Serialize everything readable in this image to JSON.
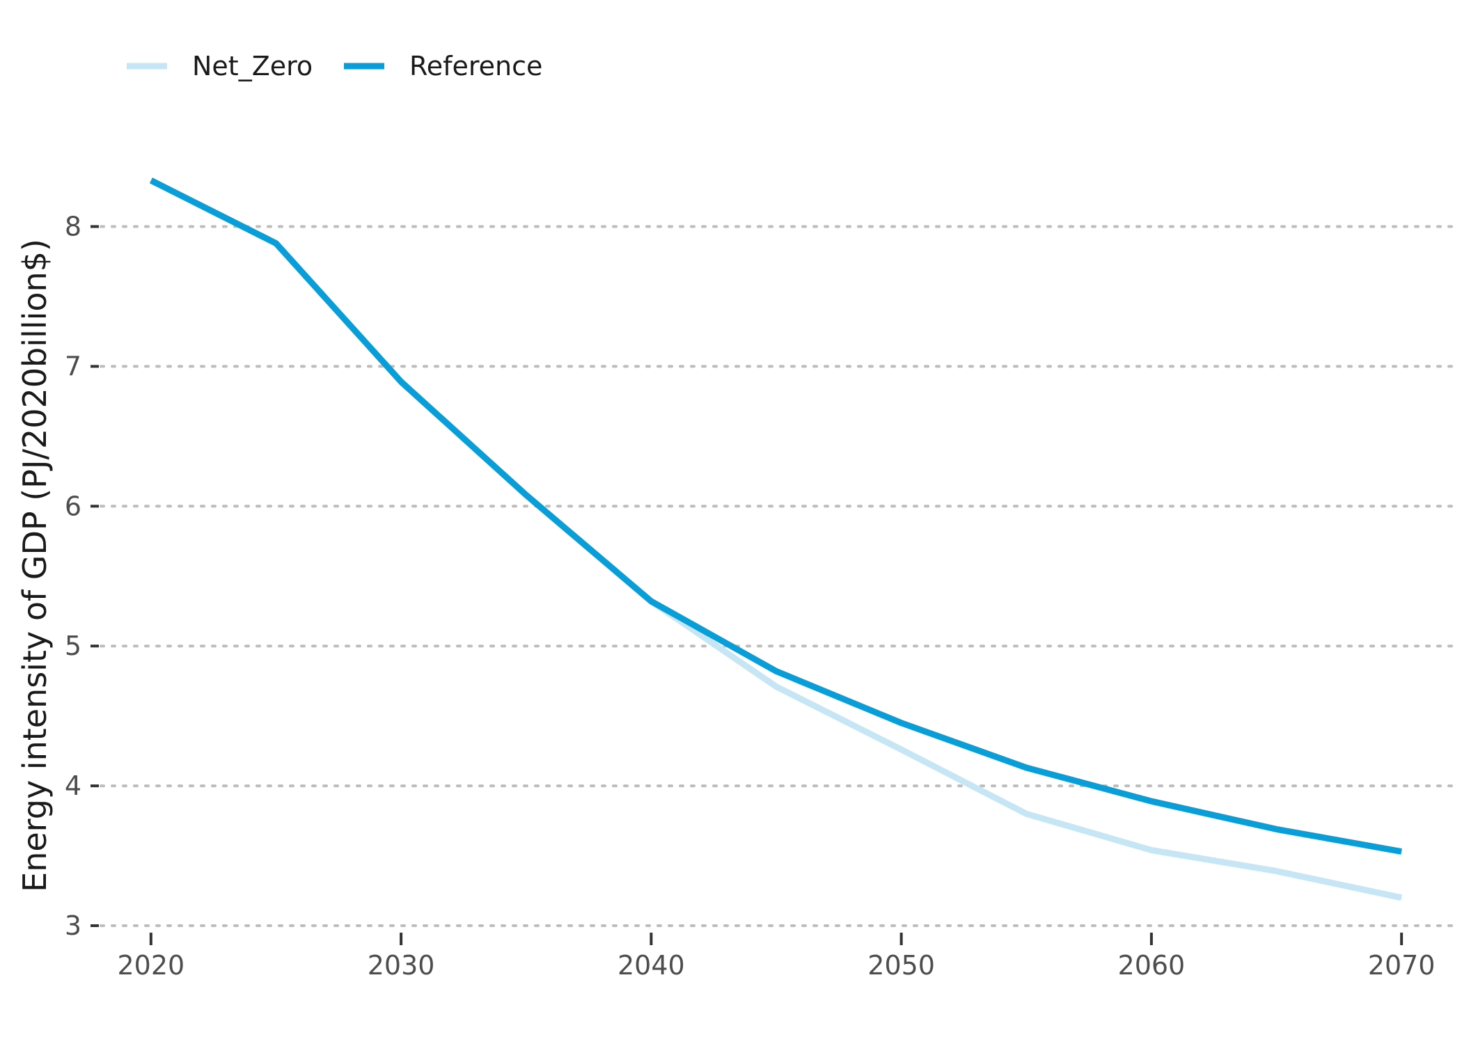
{
  "chart_data": {
    "type": "line",
    "title": "",
    "xlabel": "",
    "ylabel": "Energy intensity of GDP (PJ/2020billion$)",
    "xlim": [
      2018,
      2072
    ],
    "ylim": [
      3,
      8.55
    ],
    "x_ticks": [
      2020,
      2030,
      2040,
      2050,
      2060,
      2070
    ],
    "y_ticks": [
      3,
      4,
      5,
      6,
      7,
      8
    ],
    "grid": "horizontal-dotted",
    "legend": {
      "position": "top-left",
      "entries": [
        "Net_Zero",
        "Reference"
      ]
    },
    "x": [
      2020,
      2025,
      2030,
      2035,
      2040,
      2045,
      2050,
      2055,
      2060,
      2065,
      2070
    ],
    "series": [
      {
        "name": "Net_Zero",
        "color": "#c6e5f5",
        "values": [
          8.33,
          7.88,
          6.89,
          6.08,
          5.32,
          4.71,
          4.26,
          3.8,
          3.54,
          3.39,
          3.2
        ]
      },
      {
        "name": "Reference",
        "color": "#0a9ed8",
        "values": [
          8.33,
          7.88,
          6.89,
          6.08,
          5.32,
          4.82,
          4.45,
          4.13,
          3.89,
          3.69,
          3.53
        ]
      }
    ]
  }
}
